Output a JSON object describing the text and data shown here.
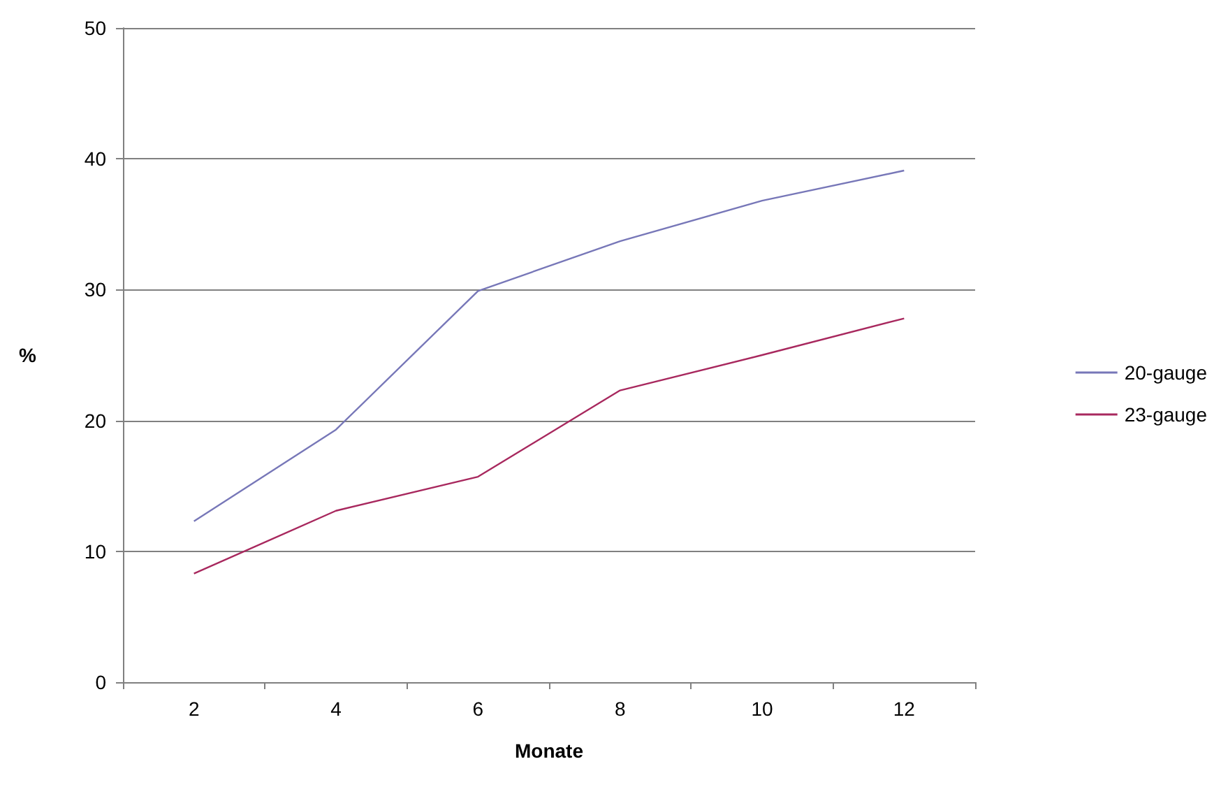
{
  "chart_data": {
    "type": "line",
    "xlabel": "Monate",
    "ylabel": "%",
    "categories": [
      "2",
      "4",
      "6",
      "8",
      "10",
      "12"
    ],
    "series": [
      {
        "name": "20-gauge",
        "color": "#7777b8",
        "values": [
          12.3,
          19.3,
          29.9,
          33.7,
          36.8,
          39.1
        ]
      },
      {
        "name": "23-gauge",
        "color": "#a8285e",
        "values": [
          8.3,
          13.1,
          15.7,
          22.3,
          25.0,
          27.8
        ]
      }
    ],
    "ylim": [
      0,
      50
    ],
    "yticks": [
      0,
      10,
      20,
      30,
      40,
      50
    ],
    "grid": "y",
    "legend": "right",
    "marker": "none",
    "line_style": "solid"
  }
}
